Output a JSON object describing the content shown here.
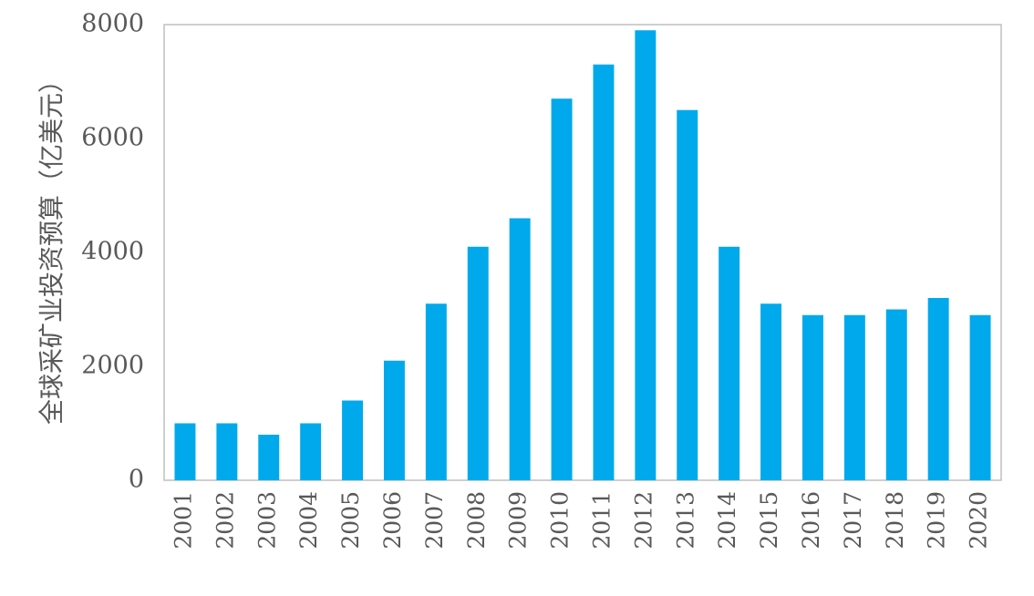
{
  "chart_data": {
    "type": "bar",
    "title": "",
    "xlabel": "",
    "ylabel": "全球采矿业投资预算（亿美元）",
    "ylim": [
      0,
      8000
    ],
    "yticks": [
      0,
      2000,
      4000,
      6000,
      8000
    ],
    "grid": false,
    "bar_color": "#00A9EB",
    "categories": [
      "2001",
      "2002",
      "2003",
      "2004",
      "2005",
      "2006",
      "2007",
      "2008",
      "2009",
      "2010",
      "2011",
      "2012",
      "2013",
      "2014",
      "2015",
      "2016",
      "2017",
      "2018",
      "2019",
      "2020"
    ],
    "values": [
      1000,
      1000,
      800,
      1000,
      1400,
      2100,
      3100,
      4100,
      4600,
      6700,
      7300,
      7900,
      6500,
      4100,
      3100,
      2900,
      2900,
      3000,
      3200,
      2900
    ]
  }
}
